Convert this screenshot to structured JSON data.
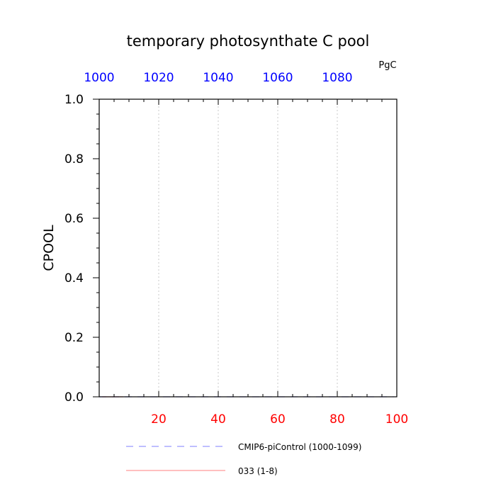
{
  "chart_data": {
    "type": "line",
    "title": "temporary photosynthate C pool",
    "units": "PgC",
    "ylabel": "CPOOL",
    "ylim": [
      0.0,
      1.0
    ],
    "y_ticks": [
      "0.0",
      "0.2",
      "0.4",
      "0.6",
      "0.8",
      "1.0"
    ],
    "bottom_axis": {
      "range": [
        0,
        100
      ],
      "ticks": [
        "20",
        "40",
        "60",
        "80",
        "100"
      ],
      "color": "#ff0000"
    },
    "top_axis": {
      "range": [
        1000,
        1100
      ],
      "ticks": [
        "1000",
        "1020",
        "1040",
        "1060",
        "1080"
      ],
      "color": "#0000ff"
    },
    "grid": "vertical dotted",
    "series": [
      {
        "name": "CMIP6-piControl (1000-1099)",
        "color": "#9999ff",
        "dash": "dashed",
        "axis": "top",
        "x": [
          1000,
          1099
        ],
        "y": [
          0.0,
          0.0
        ]
      },
      {
        "name": "033 (1-8)",
        "color": "#ff9999",
        "dash": "solid",
        "axis": "bottom",
        "x": [
          1,
          8
        ],
        "y": [
          0.0,
          0.0
        ]
      }
    ],
    "legend_position": "bottom"
  }
}
